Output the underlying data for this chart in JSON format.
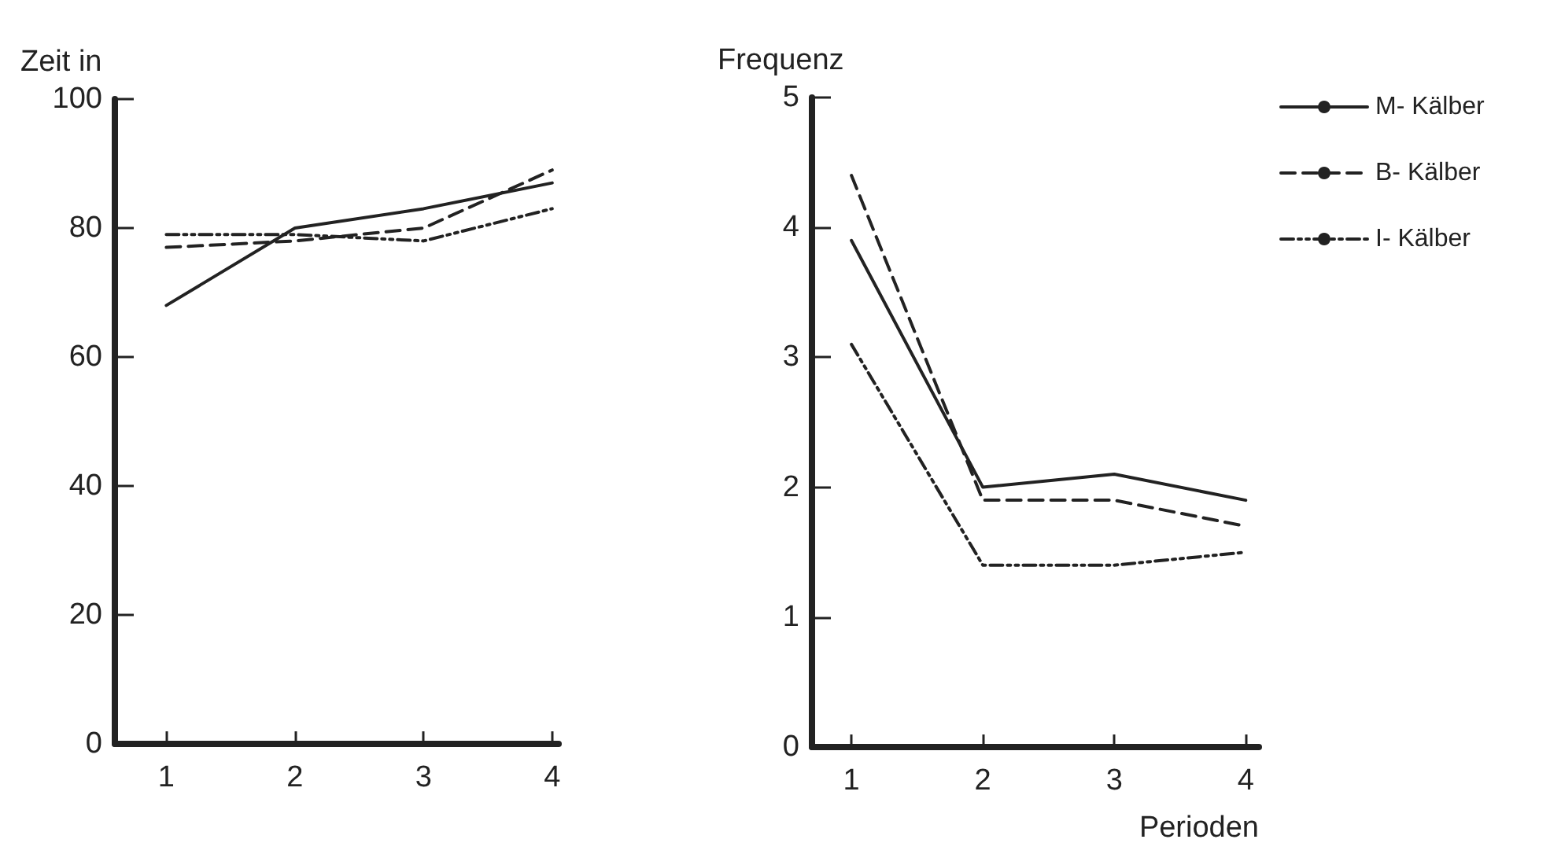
{
  "chart_data": [
    {
      "type": "line",
      "ylabel": "Zeit in",
      "x": [
        1,
        2,
        3,
        4
      ],
      "xlim": [
        0.6,
        4.05
      ],
      "xticks": [
        1,
        2,
        3,
        4
      ],
      "ylim": [
        0,
        100
      ],
      "yticks": [
        0,
        20,
        40,
        60,
        80,
        100
      ],
      "grid": false,
      "legend": false,
      "marker": "none",
      "series": [
        {
          "color": "#222222",
          "line_style": "solid",
          "values": [
            68,
            80,
            83,
            87
          ]
        },
        {
          "color": "#222222",
          "line_style": "dashed",
          "values": [
            77,
            78,
            80,
            89
          ]
        },
        {
          "color": "#222222",
          "line_style": "dotted",
          "values": [
            79,
            79,
            78,
            83
          ]
        }
      ]
    },
    {
      "type": "line",
      "ylabel": "Frequenz",
      "xlabel": "Perioden",
      "x": [
        1,
        2,
        3,
        4
      ],
      "xlim": [
        0.7,
        4.1
      ],
      "xticks": [
        1,
        2,
        3,
        4
      ],
      "ylim": [
        0,
        5
      ],
      "yticks": [
        0,
        1,
        2,
        3,
        4,
        5
      ],
      "grid": false,
      "legend": "top right",
      "marker": "none",
      "series": [
        {
          "name": "M- Kälber",
          "color": "#222222",
          "line_style": "solid",
          "values": [
            3.9,
            2.0,
            2.1,
            1.9
          ]
        },
        {
          "name": "B- Kälber",
          "color": "#222222",
          "line_style": "dashed",
          "values": [
            4.4,
            1.9,
            1.9,
            1.7
          ]
        },
        {
          "name": "I- Kälber",
          "color": "#222222",
          "line_style": "dotted",
          "values": [
            3.1,
            1.4,
            1.4,
            1.5
          ]
        }
      ]
    }
  ]
}
